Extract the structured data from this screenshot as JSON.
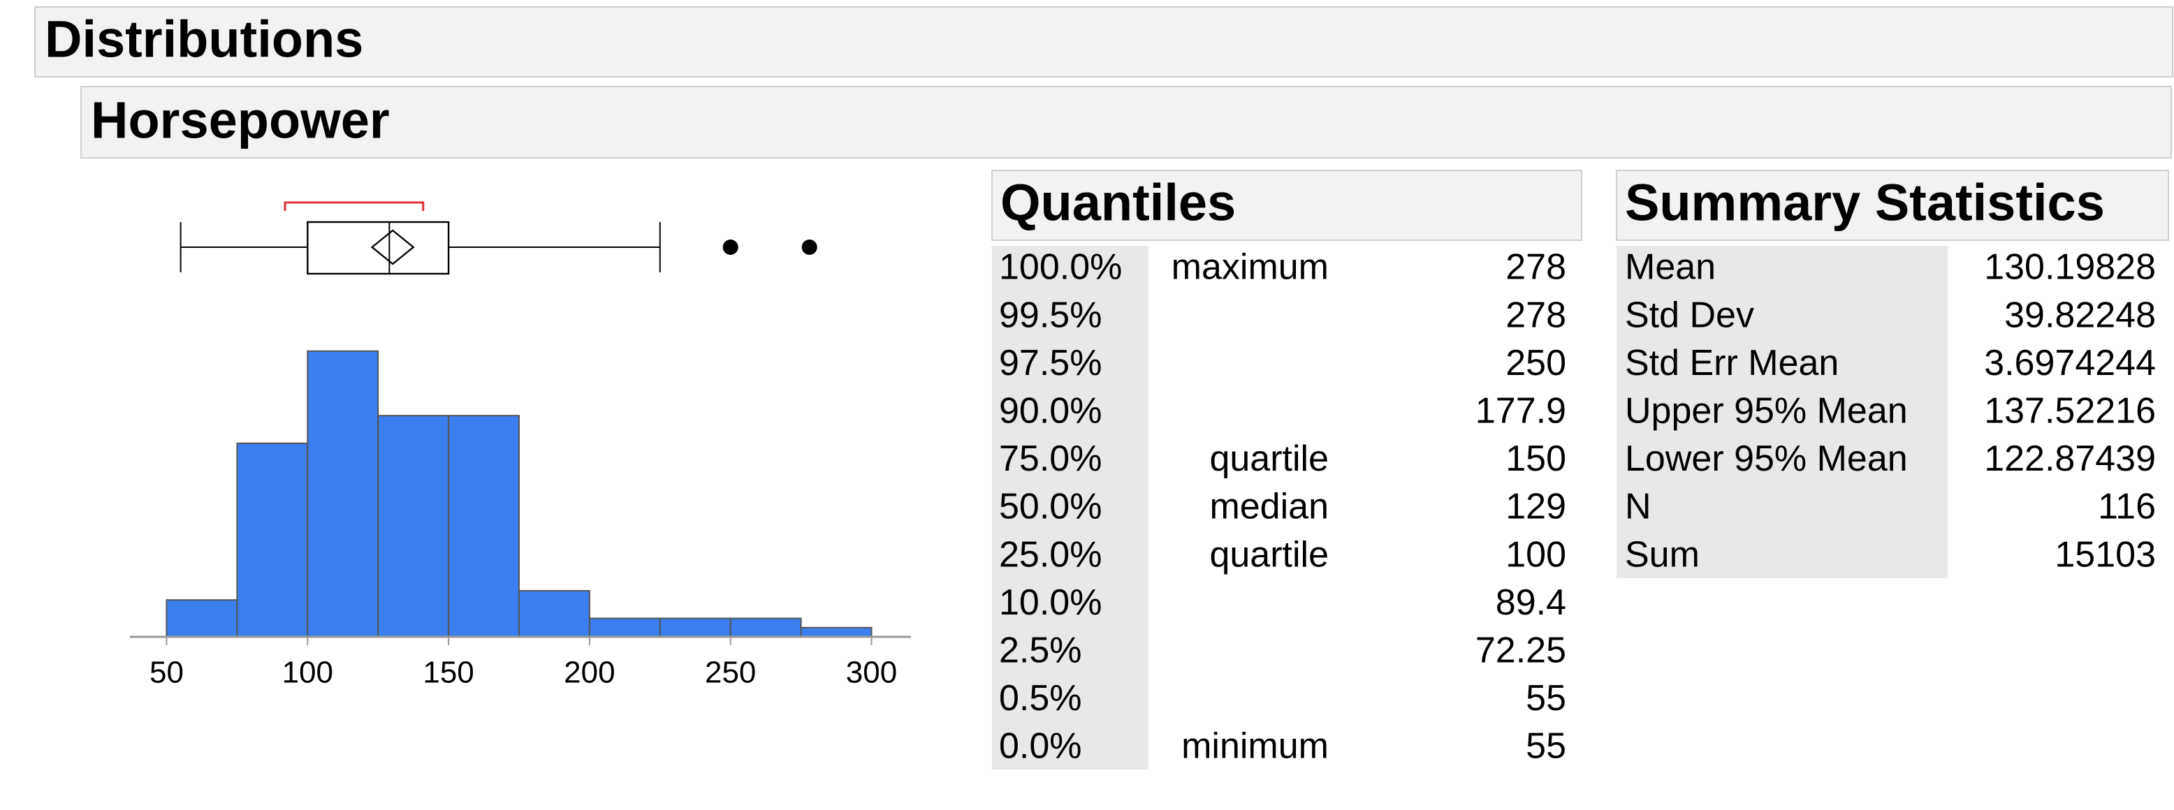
{
  "header": {
    "title": "Distributions"
  },
  "variable": {
    "title": "Horsepower"
  },
  "chart_data": {
    "type": "histogram",
    "bins": [
      50,
      75,
      100,
      125,
      150,
      175,
      200,
      225,
      250,
      275,
      300
    ],
    "counts": [
      4,
      21,
      31,
      24,
      24,
      5,
      2,
      2,
      2,
      1
    ],
    "color": "#3b7ff0",
    "xlim": [
      37,
      314
    ],
    "xticks": [
      50,
      100,
      150,
      200,
      250,
      300
    ],
    "boxplot": {
      "whisker_high": 225,
      "outliers": [
        250,
        278
      ],
      "shortest_half": [
        92,
        141
      ]
    }
  },
  "quantiles": {
    "title": "Quantiles",
    "rows": [
      {
        "percent": "100.0%",
        "label": "maximum",
        "value": 278
      },
      {
        "percent": "99.5%",
        "value": 278
      },
      {
        "percent": "97.5%",
        "value": 250
      },
      {
        "percent": "90.0%",
        "value": 177.9
      },
      {
        "percent": "75.0%",
        "label": "quartile",
        "value": 150
      },
      {
        "percent": "50.0%",
        "label": "median",
        "value": 129
      },
      {
        "percent": "25.0%",
        "label": "quartile",
        "value": 100
      },
      {
        "percent": "10.0%",
        "value": 89.4
      },
      {
        "percent": "2.5%",
        "value": 72.25
      },
      {
        "percent": "0.5%",
        "value": 55
      },
      {
        "percent": "0.0%",
        "label": "minimum",
        "value": 55
      }
    ]
  },
  "summary": {
    "title": "Summary Statistics",
    "rows": [
      {
        "label": "Mean",
        "value": 130.19828
      },
      {
        "label": "Std Dev",
        "value": 39.82248
      },
      {
        "label": "Std Err Mean",
        "value": 3.6974244
      },
      {
        "label": "Upper 95% Mean",
        "value": 137.52216
      },
      {
        "label": "Lower 95% Mean",
        "value": 122.87439
      },
      {
        "label": "N",
        "value": 116
      },
      {
        "label": "Sum",
        "value": 15103
      }
    ]
  }
}
